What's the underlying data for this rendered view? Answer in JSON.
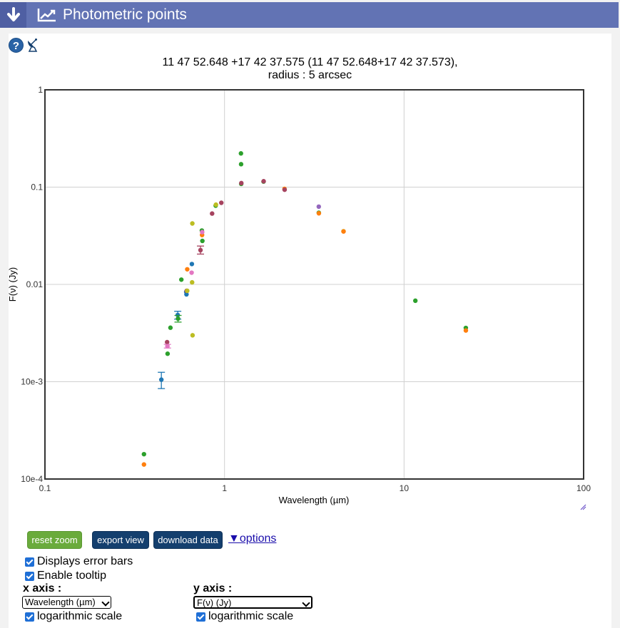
{
  "header": {
    "title": "Photometric points"
  },
  "chart_data": {
    "type": "scatter",
    "title": "11 47 52.648 +17 42 37.575 (11 47 52.648+17 42 37.573),",
    "subtitle": "radius : 5 arcsec",
    "xlabel": "Wavelength (µm)",
    "ylabel": "F(ν) (Jy)",
    "xscale": "log",
    "yscale": "log",
    "xlim": [
      0.1,
      100
    ],
    "ylim": [
      0.0001,
      1
    ],
    "grid": true,
    "x_tick_labels": [
      "0.1",
      "1",
      "10",
      "100"
    ],
    "y_tick_labels": [
      "1",
      "0.1",
      "0.01",
      "10e-3",
      "10e-4"
    ],
    "points": [
      {
        "x": 0.356,
        "y": 0.00018,
        "color": "#2ca02c"
      },
      {
        "x": 0.356,
        "y": 0.000141,
        "color": "#ff7f0e"
      },
      {
        "x": 0.445,
        "y": 0.00105,
        "color": "#1f77b4",
        "err_low": 0.00085,
        "err_high": 0.00125
      },
      {
        "x": 0.479,
        "y": 0.00255,
        "color": "#a6435f"
      },
      {
        "x": 0.481,
        "y": 0.00232,
        "color": "#e377c2",
        "err_low": 0.00222,
        "err_high": 0.00242
      },
      {
        "x": 0.482,
        "y": 0.00194,
        "color": "#2ca02c"
      },
      {
        "x": 0.5,
        "y": 0.00359,
        "color": "#2ca02c"
      },
      {
        "x": 0.549,
        "y": 0.00485,
        "color": "#1f77b4",
        "err_low": 0.0044,
        "err_high": 0.0053
      },
      {
        "x": 0.551,
        "y": 0.00445,
        "color": "#2ca02c",
        "err_low": 0.0041,
        "err_high": 0.0048
      },
      {
        "x": 0.575,
        "y": 0.0112,
        "color": "#2ca02c"
      },
      {
        "x": 0.612,
        "y": 0.0084,
        "color": "#1f77b4"
      },
      {
        "x": 0.614,
        "y": 0.0079,
        "color": "#1f77b4"
      },
      {
        "x": 0.616,
        "y": 0.0086,
        "color": "#a6435f"
      },
      {
        "x": 0.62,
        "y": 0.0086,
        "color": "#bcbd22"
      },
      {
        "x": 0.62,
        "y": 0.0143,
        "color": "#ff7f0e"
      },
      {
        "x": 0.656,
        "y": 0.0132,
        "color": "#e377c2"
      },
      {
        "x": 0.658,
        "y": 0.0162,
        "color": "#1f77b4"
      },
      {
        "x": 0.66,
        "y": 0.0105,
        "color": "#bcbd22"
      },
      {
        "x": 0.662,
        "y": 0.0423,
        "color": "#bcbd22"
      },
      {
        "x": 0.664,
        "y": 0.003,
        "color": "#bcbd22"
      },
      {
        "x": 0.735,
        "y": 0.0225,
        "color": "#a6435f",
        "err_low": 0.0205,
        "err_high": 0.0248
      },
      {
        "x": 0.748,
        "y": 0.0358,
        "color": "#2ca02c"
      },
      {
        "x": 0.75,
        "y": 0.0322,
        "color": "#ff7f0e"
      },
      {
        "x": 0.751,
        "y": 0.0345,
        "color": "#e377c2"
      },
      {
        "x": 0.753,
        "y": 0.028,
        "color": "#2ca02c"
      },
      {
        "x": 0.853,
        "y": 0.0535,
        "color": "#a6435f"
      },
      {
        "x": 0.893,
        "y": 0.0645,
        "color": "#2ca02c"
      },
      {
        "x": 0.896,
        "y": 0.066,
        "color": "#bcbd22"
      },
      {
        "x": 0.96,
        "y": 0.069,
        "color": "#a6435f"
      },
      {
        "x": 1.235,
        "y": 0.222,
        "color": "#2ca02c"
      },
      {
        "x": 1.237,
        "y": 0.172,
        "color": "#2ca02c"
      },
      {
        "x": 1.239,
        "y": 0.108,
        "color": "#2ca02c"
      },
      {
        "x": 1.241,
        "y": 0.11,
        "color": "#a6435f"
      },
      {
        "x": 1.65,
        "y": 0.114,
        "color": "#2ca02c"
      },
      {
        "x": 1.652,
        "y": 0.115,
        "color": "#a6435f"
      },
      {
        "x": 2.159,
        "y": 0.096,
        "color": "#ff7f0e"
      },
      {
        "x": 2.162,
        "y": 0.094,
        "color": "#a6435f"
      },
      {
        "x": 3.35,
        "y": 0.063,
        "color": "#9467bd"
      },
      {
        "x": 3.352,
        "y": 0.0545,
        "color": "#2ca02c"
      },
      {
        "x": 3.354,
        "y": 0.0538,
        "color": "#ff7f0e"
      },
      {
        "x": 4.6,
        "y": 0.0352,
        "color": "#bcbd22"
      },
      {
        "x": 4.602,
        "y": 0.035,
        "color": "#ff7f0e"
      },
      {
        "x": 11.56,
        "y": 0.0068,
        "color": "#2ca02c"
      },
      {
        "x": 22.08,
        "y": 0.00357,
        "color": "#2ca02c"
      },
      {
        "x": 22.09,
        "y": 0.00336,
        "color": "#ff7f0e"
      }
    ]
  },
  "controls": {
    "reset_zoom": "reset zoom",
    "export_view": "export view",
    "download_data": "download data",
    "options": "▼options",
    "error_bars": "Displays error bars",
    "tooltip": "Enable tooltip",
    "x_axis_label": "x axis :",
    "y_axis_label": "y axis :",
    "x_axis_value": "Wavelength (µm)",
    "y_axis_value": "F(ν) (Jy)",
    "x_log": "logarithmic scale",
    "y_log": "logarithmic scale"
  },
  "help_symbol": "?",
  "colors": {
    "header": "#6273b4",
    "header_dark": "#4f5fa3",
    "button_green": "#6aab3c",
    "button_navy": "#143f6e"
  },
  "icons": [
    "arrow-down-icon",
    "line-chart-icon",
    "help-icon",
    "satellite-dish-icon",
    "resize-handle-icon"
  ]
}
